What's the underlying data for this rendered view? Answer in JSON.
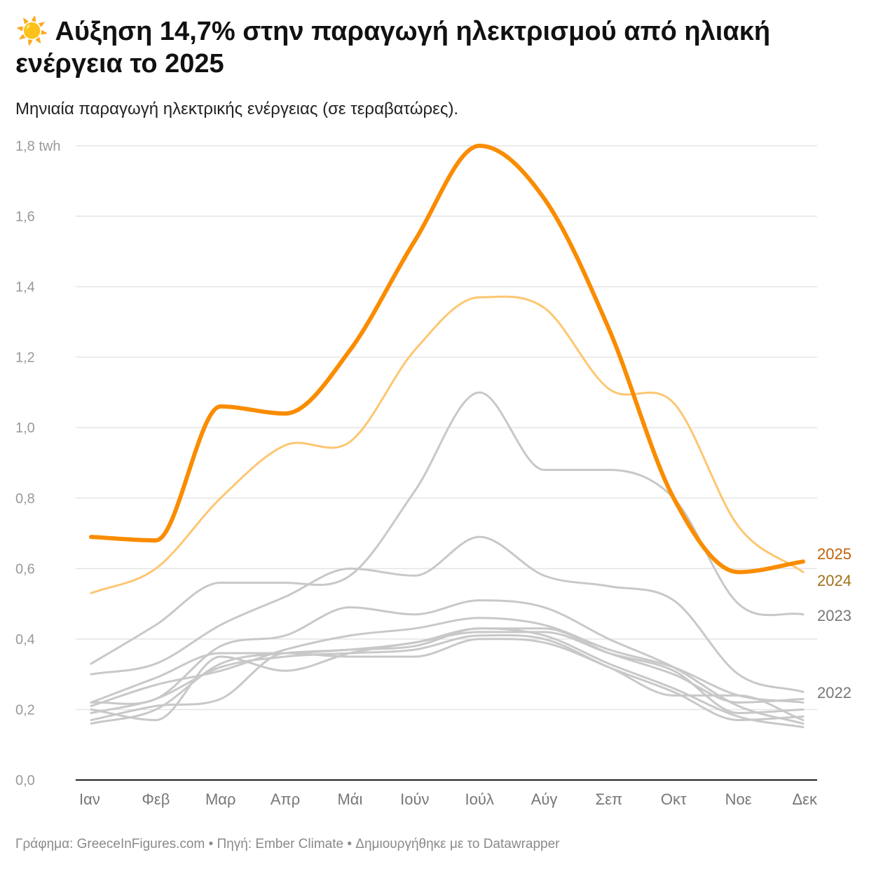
{
  "header": {
    "icon": "sun-emoji",
    "title": "☀️ Αύξηση 14,7% στην παραγωγή ηλεκτρισμού από ηλιακή ενέργεια το 2025",
    "subtitle": "Μηνιαία παραγωγή ηλεκτρικής ενέργειας (σε τεραβατώρες)."
  },
  "footer": "Γράφημα: GreeceInFigures.com • Πηγή: Ember Climate • Δημιουργήθηκε με το Datawrapper",
  "chart_data": {
    "type": "line",
    "categories": [
      "Ιαν",
      "Φεβ",
      "Μαρ",
      "Απρ",
      "Μάι",
      "Ιούν",
      "Ιούλ",
      "Αύγ",
      "Σεπ",
      "Οκτ",
      "Νοε",
      "Δεκ"
    ],
    "ylim": [
      0,
      1.8
    ],
    "yticks": [
      0,
      0.2,
      0.4,
      0.6,
      0.8,
      1.0,
      1.2,
      1.4,
      1.6,
      1.8
    ],
    "ytick_labels": [
      "0,0",
      "0,2",
      "0,4",
      "0,6",
      "0,8",
      "1,0",
      "1,2",
      "1,4",
      "1,6",
      "1,8 twh"
    ],
    "grid": true,
    "series": [
      {
        "values": [
          0.22,
          0.29,
          0.36,
          0.36,
          0.37,
          0.38,
          0.43,
          0.43,
          0.36,
          0.3,
          0.22,
          0.23
        ],
        "color": "#c8c8c8"
      },
      {
        "values": [
          0.21,
          0.27,
          0.31,
          0.37,
          0.41,
          0.43,
          0.46,
          0.44,
          0.37,
          0.32,
          0.24,
          0.22
        ],
        "color": "#c8c8c8"
      },
      {
        "values": [
          0.2,
          0.17,
          0.35,
          0.31,
          0.36,
          0.39,
          0.42,
          0.42,
          0.36,
          0.31,
          0.19,
          0.2
        ],
        "color": "#c8c8c8"
      },
      {
        "values": [
          0.19,
          0.23,
          0.32,
          0.35,
          0.36,
          0.37,
          0.41,
          0.4,
          0.32,
          0.25,
          0.17,
          0.18
        ],
        "color": "#c8c8c8"
      },
      {
        "values": [
          0.17,
          0.21,
          0.23,
          0.36,
          0.35,
          0.35,
          0.4,
          0.39,
          0.32,
          0.24,
          0.24,
          0.17
        ],
        "color": "#c8c8c8"
      },
      {
        "values": [
          0.16,
          0.2,
          0.33,
          0.36,
          0.37,
          0.39,
          0.43,
          0.41,
          0.33,
          0.26,
          0.18,
          0.15
        ],
        "color": "#c8c8c8"
      },
      {
        "values": [
          0.22,
          0.23,
          0.38,
          0.41,
          0.49,
          0.47,
          0.51,
          0.49,
          0.4,
          0.32,
          0.21,
          0.16
        ],
        "color": "#c8c8c8"
      },
      {
        "name": "2022",
        "values": [
          0.3,
          0.33,
          0.44,
          0.52,
          0.6,
          0.58,
          0.69,
          0.58,
          0.55,
          0.51,
          0.3,
          0.25
        ],
        "color": "#c8c8c8",
        "label_color": "#777777"
      },
      {
        "name": "2023",
        "values": [
          0.33,
          0.44,
          0.56,
          0.56,
          0.58,
          0.82,
          1.1,
          0.88,
          0.88,
          0.8,
          0.5,
          0.47
        ],
        "color": "#c8c8c8",
        "label_color": "#777777"
      },
      {
        "name": "2024",
        "values": [
          0.53,
          0.6,
          0.8,
          0.95,
          0.96,
          1.22,
          1.37,
          1.34,
          1.11,
          1.07,
          0.72,
          0.59
        ],
        "color": "#fec671",
        "label_color": "#a0711a"
      },
      {
        "name": "2025",
        "values": [
          0.69,
          0.68,
          1.06,
          1.04,
          1.22,
          1.53,
          1.8,
          1.65,
          1.28,
          0.8,
          0.59,
          0.62
        ],
        "color": "#fa8c00",
        "label_color": "#c0620a"
      }
    ]
  }
}
